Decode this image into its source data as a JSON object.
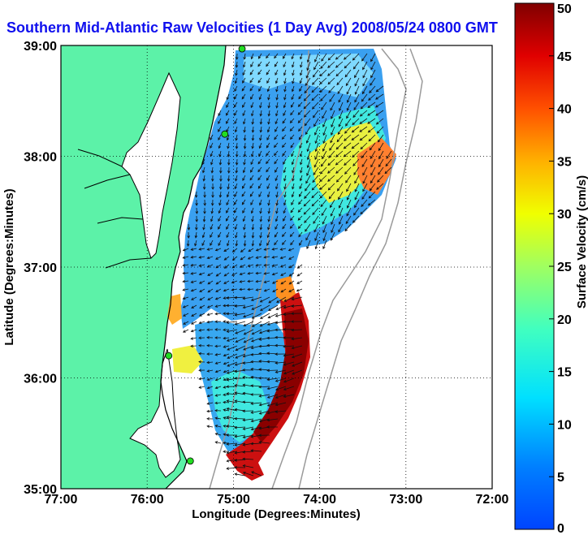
{
  "title": "Southern Mid-Atlantic Raw Velocities (1 Day Avg) 2008/05/24 0800 GMT",
  "map": {
    "xlabel": "Longitude (Degrees:Minutes)",
    "ylabel": "Latitude (Degrees:Minutes)",
    "x_ticks": [
      "77:00",
      "76:00",
      "75:00",
      "74:00",
      "73:00",
      "72:00"
    ],
    "y_ticks": [
      "39:00",
      "38:00",
      "37:00",
      "36:00",
      "35:00"
    ],
    "lon_range": [
      -77,
      -72
    ],
    "lat_range": [
      35,
      39
    ],
    "grid": "dotted",
    "land_color": "#5cf2a8",
    "coast_color": "#000000",
    "station_color": "#22dd22",
    "stations": [
      {
        "lon": -74.9,
        "lat": 38.97
      },
      {
        "lon": -75.1,
        "lat": 38.2
      },
      {
        "lon": -75.75,
        "lat": 36.2
      },
      {
        "lon": -75.5,
        "lat": 35.25
      }
    ]
  },
  "colorbar": {
    "label": "Surface Velocity (cm/s)",
    "ticks": [
      "0",
      "5",
      "10",
      "15",
      "20",
      "25",
      "30",
      "35",
      "40",
      "45",
      "50"
    ],
    "range": [
      0,
      50
    ],
    "position": "right"
  }
}
